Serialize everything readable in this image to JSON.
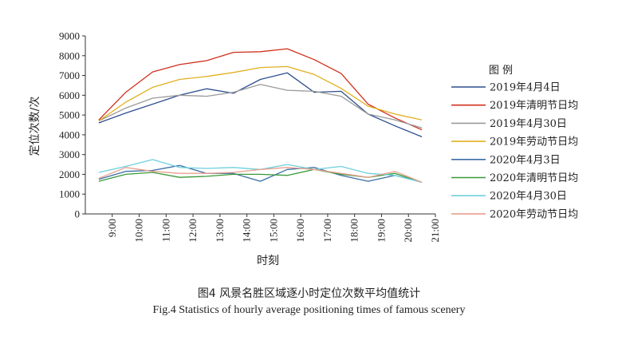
{
  "chart_data": {
    "type": "line",
    "xlabel": "时刻",
    "ylabel": "定位次数/次",
    "ylim": [
      0,
      9000
    ],
    "yticks": [
      "0",
      "1000",
      "2000",
      "3000",
      "4000",
      "5000",
      "6000",
      "7000",
      "8000",
      "9000"
    ],
    "categories": [
      "9:00",
      "10:00",
      "11:00",
      "12:00",
      "13:00",
      "14:00",
      "15:00",
      "16:00",
      "17:00",
      "18:00",
      "19:00",
      "20:00",
      "21:00"
    ],
    "x": [
      8.5,
      9.5,
      10.5,
      11.5,
      12.5,
      13.5,
      14.5,
      15.5,
      16.5,
      17.5,
      18.5,
      19.5,
      20.5
    ],
    "legend_title": "图  例",
    "legend_position": "right",
    "grid": false,
    "series": [
      {
        "name": "2019年4月4日",
        "color": "#2e4f8f",
        "values": [
          4600,
          5100,
          5550,
          6000,
          6330,
          6100,
          6800,
          7130,
          6150,
          6200,
          5050,
          4450,
          3900
        ]
      },
      {
        "name": "2019年清明节日均",
        "color": "#d0301e",
        "values": [
          4750,
          6150,
          7180,
          7550,
          7750,
          8170,
          8200,
          8350,
          7800,
          7100,
          5550,
          4850,
          4250
        ]
      },
      {
        "name": "2019年4月30日",
        "color": "#9a9a9a",
        "values": [
          4700,
          5350,
          5850,
          6000,
          5950,
          6150,
          6550,
          6250,
          6200,
          5950,
          5050,
          4750,
          4350
        ]
      },
      {
        "name": "2019年劳动节日均",
        "color": "#e0b020",
        "values": [
          4700,
          5650,
          6400,
          6800,
          6950,
          7150,
          7400,
          7450,
          7050,
          6350,
          5450,
          5050,
          4750
        ]
      },
      {
        "name": "2020年4月3日",
        "color": "#3a6ea5",
        "values": [
          1750,
          2150,
          2200,
          2450,
          2050,
          2050,
          1650,
          2250,
          2350,
          1950,
          1650,
          1950,
          1600
        ]
      },
      {
        "name": "2020年清明节日均",
        "color": "#3a9a3a",
        "values": [
          1650,
          2000,
          2100,
          1850,
          1900,
          2000,
          2000,
          1950,
          2250,
          2000,
          1850,
          2050,
          1600
        ]
      },
      {
        "name": "2020年4月30日",
        "color": "#6fd0dc",
        "values": [
          2100,
          2400,
          2750,
          2350,
          2300,
          2350,
          2250,
          2500,
          2250,
          2400,
          2050,
          1950,
          1600
        ]
      },
      {
        "name": "2020年劳动节日均",
        "color": "#e8a08e",
        "values": [
          1800,
          2350,
          2150,
          2050,
          2050,
          2100,
          2250,
          2350,
          2250,
          2050,
          1850,
          2150,
          1600
        ]
      }
    ]
  },
  "captions": {
    "cn": "图4   风景名胜区域逐小时定位次数平均值统计",
    "en": "Fig.4   Statistics of hourly average positioning times of famous scenery"
  }
}
